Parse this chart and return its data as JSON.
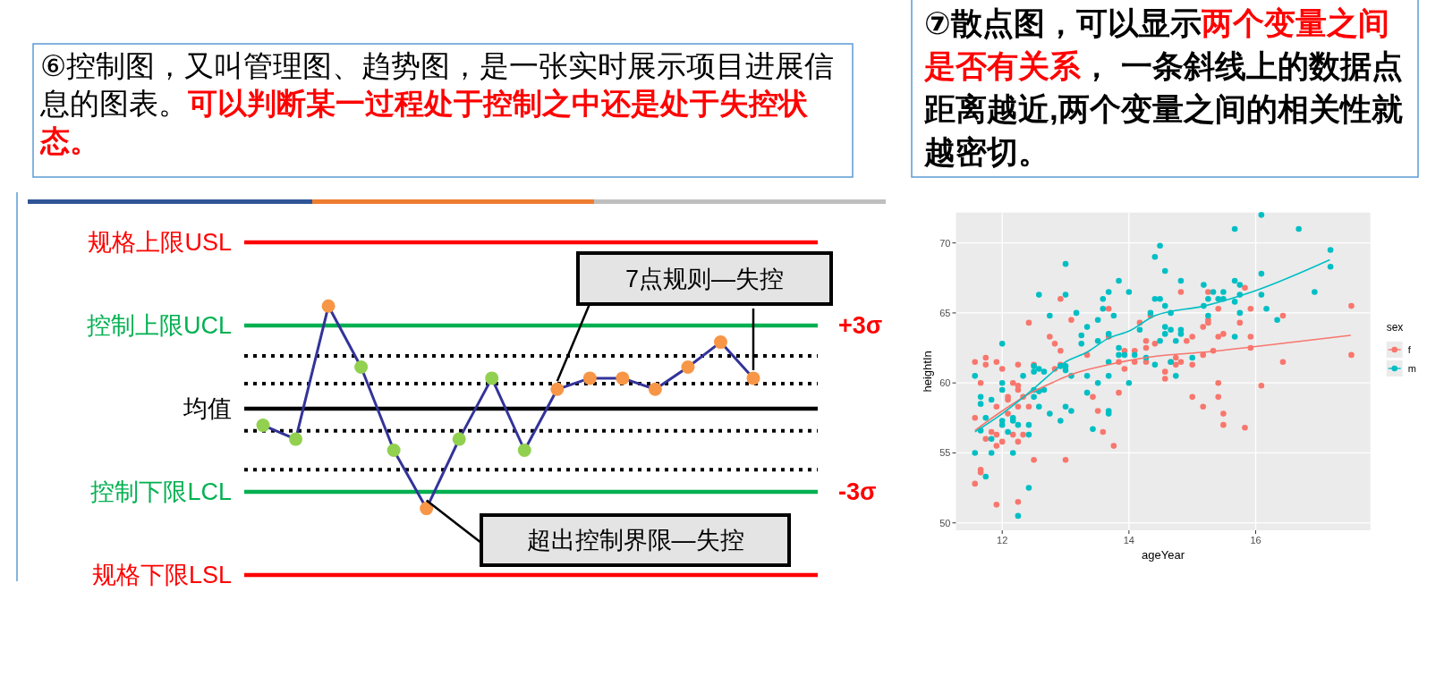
{
  "chart_data": [
    {
      "type": "line",
      "title": "⑥控制图，又叫管理图、趋势图，是一张实时展示项目进展信息的图表。",
      "subtitle": "可以判断某一过程处于控制之中还是处于失控状态。",
      "categories": [
        null,
        null,
        null,
        null,
        null,
        null,
        null,
        null,
        null,
        null,
        null,
        null,
        null,
        null,
        null,
        null
      ],
      "marker": "circle",
      "ylim": [
        -6,
        6
      ],
      "yticks": [
        {
          "value": 3,
          "label": "+3σ"
        },
        {
          "value": -3,
          "label": "-3σ"
        }
      ],
      "series": [
        {
          "color": "#333399",
          "values": [
            -0.6,
            -1.1,
            3.7,
            1.5,
            -1.5,
            -3.6,
            -1.1,
            1.1,
            -1.5,
            0.7,
            1.1,
            1.1,
            0.7,
            1.5,
            2.4,
            1.1
          ],
          "colors": [
            "#92d050",
            "#92d050",
            "#f79646",
            "#92d050",
            "#92d050",
            "#f79646",
            "#92d050",
            "#92d050",
            "#92d050",
            "#f79646",
            "#f79646",
            "#f79646",
            "#f79646",
            "#f79646",
            "#f79646",
            "#f79646"
          ]
        }
      ],
      "ref_lines": [
        {
          "axis": "y",
          "value": 6,
          "label": "规格上限USL",
          "color": "#ff0000",
          "line_style": "solid"
        },
        {
          "axis": "y",
          "value": 3,
          "label": "控制上限UCL",
          "color": "#00b050",
          "line_style": "solid"
        },
        {
          "axis": "y",
          "value": 1.9,
          "label": null,
          "color": "#000000",
          "line_style": "dotted"
        },
        {
          "axis": "y",
          "value": 0.9,
          "label": null,
          "color": "#000000",
          "line_style": "dotted"
        },
        {
          "axis": "y",
          "value": 0,
          "label": "均值",
          "color": "#000000",
          "line_style": "solid"
        },
        {
          "axis": "y",
          "value": -0.8,
          "label": null,
          "color": "#000000",
          "line_style": "dotted"
        },
        {
          "axis": "y",
          "value": -2.2,
          "label": null,
          "color": "#000000",
          "line_style": "dotted"
        },
        {
          "axis": "y",
          "value": -3,
          "label": "控制下限LCL",
          "color": "#00b050",
          "line_style": "solid"
        },
        {
          "axis": "y",
          "value": -6,
          "label": "规格下限LSL",
          "color": "#ff0000",
          "line_style": "solid"
        }
      ],
      "annotations": [
        "7点规则—失控",
        "超出控制界限—失控"
      ]
    },
    {
      "type": "scatter",
      "title": "⑦散点图，可以显示",
      "subtitle": "两个变量之间是否有关系",
      "annotations": [
        "， 一条斜线上的数据点距离越近,两个变量之间的相关性就越密切。"
      ],
      "xlabel": "ageYear",
      "ylabel": "heightIn",
      "legend_title": "sex",
      "legend": "right",
      "grid": true,
      "marker": "circle",
      "xlim": [
        11.27,
        17.81
      ],
      "ylim": [
        49.47,
        72.17
      ],
      "xticks": [
        12,
        14,
        16
      ],
      "yticks": [
        50,
        55,
        60,
        65,
        70
      ],
      "series": [
        {
          "name": "f",
          "color": "#f8766d",
          "x": [
            11.57,
            11.57,
            11.57,
            11.66,
            11.66,
            11.66,
            11.74,
            11.74,
            11.74,
            11.83,
            11.91,
            11.91,
            11.91,
            11.91,
            11.91,
            12.0,
            12.0,
            12.09,
            12.09,
            12.09,
            12.17,
            12.17,
            12.25,
            12.25,
            12.25,
            12.25,
            12.25,
            12.25,
            12.33,
            12.33,
            12.42,
            12.42,
            12.5,
            12.5,
            12.75,
            12.83,
            12.83,
            12.92,
            12.92,
            12.92,
            13.0,
            13.09,
            13.34,
            13.43,
            13.51,
            13.59,
            13.68,
            13.68,
            13.76,
            13.84,
            13.84,
            13.93,
            13.93,
            14.09,
            14.09,
            14.17,
            14.27,
            14.27,
            14.27,
            14.34,
            14.41,
            14.57,
            14.57,
            14.66,
            14.74,
            14.74,
            14.82,
            14.82,
            14.91,
            15.0,
            15.0,
            15.0,
            15.17,
            15.17,
            15.17,
            15.25,
            15.25,
            15.25,
            15.33,
            15.41,
            15.41,
            15.41,
            15.41,
            15.49,
            15.49,
            15.49,
            15.75,
            15.83,
            15.83,
            15.92,
            15.92,
            15.92,
            16.09,
            16.43,
            16.43,
            17.51,
            17.51
          ],
          "values": [
            57.5,
            61.5,
            52.8,
            60.0,
            53.8,
            53.6,
            61.8,
            61.3,
            56.0,
            56.5,
            61.5,
            58.3,
            56.3,
            55.5,
            51.3,
            61.0,
            55.8,
            59.0,
            58.8,
            57.8,
            60.0,
            56.3,
            61.3,
            59.8,
            59.5,
            58.3,
            55.8,
            51.5,
            59.0,
            56.3,
            64.3,
            58.3,
            61.3,
            54.5,
            63.3,
            62.8,
            61.0,
            66.0,
            62.3,
            61.3,
            54.5,
            64.5,
            62.0,
            59.0,
            58.0,
            56.5,
            65.3,
            63.3,
            55.5,
            59.3,
            61.5,
            62.3,
            61.0,
            62.3,
            61.5,
            64.3,
            63.0,
            62.5,
            61.5,
            64.8,
            62.8,
            60.8,
            60.3,
            61.5,
            61.8,
            61.3,
            66.5,
            61.5,
            63.0,
            63.3,
            61.3,
            59.0,
            64.0,
            62.0,
            58.3,
            66.5,
            64.5,
            64.3,
            62.3,
            65.3,
            63.3,
            60.0,
            59.0,
            63.5,
            57.8,
            57.0,
            64.3,
            66.8,
            56.8,
            65.3,
            63.3,
            62.5,
            59.8,
            64.8,
            61.5,
            65.5,
            62.0
          ]
        },
        {
          "name": "m",
          "color": "#00bfc4",
          "x": [
            11.57,
            11.57,
            11.66,
            11.66,
            11.66,
            11.74,
            11.74,
            11.83,
            11.83,
            11.83,
            12.0,
            12.0,
            12.0,
            12.0,
            12.0,
            12.09,
            12.17,
            12.17,
            12.17,
            12.25,
            12.33,
            12.42,
            12.42,
            12.42,
            12.25,
            12.5,
            12.5,
            12.5,
            12.5,
            12.58,
            12.58,
            12.58,
            12.58,
            12.66,
            12.66,
            12.75,
            12.75,
            12.92,
            12.92,
            13.0,
            13.0,
            13.0,
            13.0,
            13.0,
            13.09,
            13.09,
            13.17,
            13.25,
            13.25,
            13.34,
            13.34,
            13.34,
            13.43,
            13.51,
            13.51,
            13.51,
            13.59,
            13.59,
            13.68,
            13.68,
            13.68,
            13.68,
            13.68,
            13.68,
            13.76,
            13.84,
            13.84,
            13.84,
            13.93,
            14.0,
            14.0,
            14.09,
            14.17,
            14.27,
            14.34,
            14.41,
            14.41,
            14.41,
            14.49,
            14.49,
            14.49,
            14.57,
            14.57,
            14.57,
            14.57,
            14.66,
            14.66,
            14.66,
            14.74,
            14.74,
            14.82,
            14.82,
            14.82,
            15.0,
            15.18,
            15.18,
            15.25,
            15.25,
            15.33,
            15.41,
            15.49,
            15.49,
            15.67,
            15.67,
            15.67,
            15.67,
            15.75,
            15.75,
            15.75,
            16.09,
            16.09,
            16.09,
            16.17,
            16.34,
            16.68,
            16.93,
            17.18,
            17.18
          ],
          "values": [
            60.5,
            55.0,
            59.0,
            58.5,
            56.6,
            57.5,
            53.3,
            58.8,
            56.0,
            55.0,
            62.8,
            60.0,
            59.5,
            57.3,
            57.0,
            56.5,
            57.5,
            57.3,
            55.0,
            57.0,
            60.5,
            57.0,
            56.3,
            52.5,
            50.5,
            61.2,
            60.8,
            59.5,
            59.0,
            66.3,
            61.0,
            59.4,
            58.3,
            59.5,
            60.8,
            64.8,
            57.8,
            61.2,
            57.3,
            68.5,
            66.3,
            61.2,
            60.9,
            58.3,
            60.5,
            58.0,
            65.0,
            63.4,
            62.8,
            64.0,
            60.5,
            59.3,
            56.7,
            64.5,
            63.0,
            60.0,
            66.0,
            65.3,
            66.5,
            63.5,
            61.5,
            60.5,
            58.0,
            57.8,
            64.8,
            67.3,
            62.5,
            62.0,
            62.0,
            66.5,
            60.0,
            62.0,
            63.8,
            61.8,
            65.0,
            69.0,
            66.0,
            61.3,
            69.8,
            66.0,
            63.0,
            68.0,
            65.5,
            64.0,
            63.5,
            65.0,
            63.8,
            61.5,
            63.0,
            60.5,
            67.3,
            63.8,
            63.5,
            61.8,
            67.0,
            65.5,
            66.0,
            64.8,
            66.5,
            66.0,
            66.5,
            66.0,
            71.0,
            67.3,
            65.8,
            63.3,
            67.0,
            66.3,
            65.0,
            72.0,
            67.8,
            66.3,
            65.3,
            64.5,
            71.0,
            66.5,
            69.5,
            68.3
          ]
        },
        {
          "type": "line",
          "marker": "none",
          "color": "#f8766d",
          "x": [
            11.57,
            12,
            12.5,
            12.83,
            13.09,
            13.68,
            14,
            14.41,
            15.19,
            16,
            17.5
          ],
          "values": [
            56.6,
            58.0,
            59.4,
            60.1,
            60.6,
            61.3,
            61.6,
            61.9,
            62.2,
            62.6,
            63.4
          ]
        },
        {
          "type": "line",
          "marker": "none",
          "color": "#00bfc4",
          "x": [
            11.57,
            12,
            12.5,
            12.75,
            13,
            13.34,
            13.68,
            14,
            14.41,
            15.19,
            16,
            17.17
          ],
          "values": [
            56.5,
            57.8,
            59.6,
            60.6,
            61.5,
            62.2,
            63.2,
            63.7,
            64.8,
            65.5,
            66.6,
            68.8
          ]
        }
      ]
    }
  ]
}
